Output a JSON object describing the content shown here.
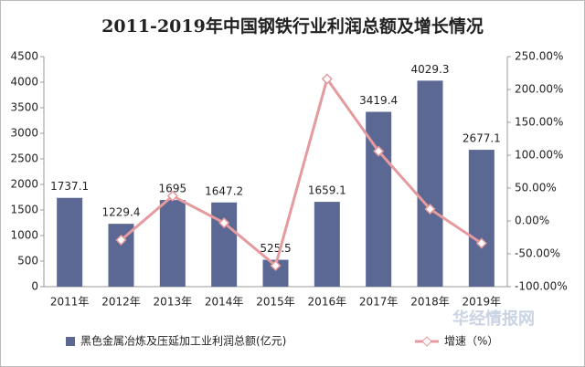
{
  "chart_data": {
    "type": "bar-line",
    "title": "2011-2019年中国钢铁行业利润总额及增长情况",
    "categories": [
      "2011年",
      "2012年",
      "2013年",
      "2014年",
      "2015年",
      "2016年",
      "2017年",
      "2018年",
      "2019年"
    ],
    "series": [
      {
        "name": "黑色金属冶炼及压延加工业利润总额(亿元)",
        "type": "bar",
        "color": "#5b6894",
        "values": [
          1737.1,
          1229.4,
          1695,
          1647.2,
          525.5,
          1659.1,
          3419.4,
          4029.3,
          2677.1
        ]
      },
      {
        "name": "增速（%）",
        "type": "line",
        "axis": "y2",
        "color": "#e59a9e",
        "values": [
          null,
          -29,
          38,
          -3,
          -68,
          216,
          106,
          18,
          -34
        ]
      }
    ],
    "ylim": [
      0,
      4500
    ],
    "yticks": [
      0,
      500,
      1000,
      1500,
      2000,
      2500,
      3000,
      3500,
      4000,
      4500
    ],
    "y2lim": [
      -100,
      250
    ],
    "y2ticks": [
      {
        "value": -100,
        "label": "-100.00%"
      },
      {
        "value": -50,
        "label": "-50.00%"
      },
      {
        "value": 0,
        "label": "0.00%"
      },
      {
        "value": 50,
        "label": "50.00%"
      },
      {
        "value": 100,
        "label": "100.00%"
      },
      {
        "value": 150,
        "label": "150.00%"
      },
      {
        "value": 200,
        "label": "200.00%"
      },
      {
        "value": 250,
        "label": "250.00%"
      }
    ],
    "legend": "bottom",
    "watermark": "华经情报网"
  }
}
